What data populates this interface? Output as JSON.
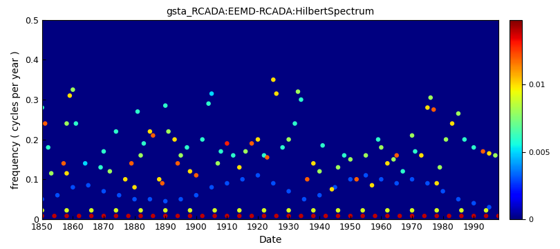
{
  "chart_data": {
    "type": "scatter",
    "title": "gsta_RCADA:EEMD-RCADA:HilbertSpectrum",
    "x_label": "Date",
    "y_label": "frequency ( cycles per year )",
    "xlim": [
      1850,
      1998
    ],
    "xticks": [
      1850,
      1860,
      1870,
      1880,
      1890,
      1900,
      1910,
      1920,
      1930,
      1940,
      1950,
      1960,
      1970,
      1980,
      1990
    ],
    "ylim": [
      0,
      0.5
    ],
    "yticks": [
      0,
      0.1,
      0.2,
      0.3,
      0.4,
      0.5
    ],
    "colorbar_range": [
      0,
      0.0148
    ],
    "colorbar_ticks": [
      0,
      0.005,
      0.01
    ],
    "points": [
      [
        1850,
        0.28,
        0.006
      ],
      [
        1851,
        0.24,
        0.012
      ],
      [
        1852,
        0.18,
        0.006
      ],
      [
        1853,
        0.115,
        0.008
      ],
      [
        1857,
        0.14,
        0.012
      ],
      [
        1858,
        0.24,
        0.008
      ],
      [
        1859,
        0.31,
        0.01
      ],
      [
        1860,
        0.325,
        0.008
      ],
      [
        1861,
        0.24,
        0.006
      ],
      [
        1858,
        0.115,
        0.01
      ],
      [
        1864,
        0.14,
        0.005
      ],
      [
        1869,
        0.13,
        0.006
      ],
      [
        1870,
        0.17,
        0.006
      ],
      [
        1872,
        0.12,
        0.008
      ],
      [
        1874,
        0.22,
        0.006
      ],
      [
        1877,
        0.1,
        0.01
      ],
      [
        1879,
        0.14,
        0.012
      ],
      [
        1880,
        0.08,
        0.01
      ],
      [
        1881,
        0.27,
        0.006
      ],
      [
        1882,
        0.16,
        0.008
      ],
      [
        1883,
        0.19,
        0.006
      ],
      [
        1885,
        0.22,
        0.01
      ],
      [
        1886,
        0.21,
        0.012
      ],
      [
        1888,
        0.1,
        0.01
      ],
      [
        1889,
        0.09,
        0.012
      ],
      [
        1890,
        0.285,
        0.006
      ],
      [
        1891,
        0.22,
        0.008
      ],
      [
        1893,
        0.2,
        0.01
      ],
      [
        1894,
        0.14,
        0.012
      ],
      [
        1895,
        0.16,
        0.008
      ],
      [
        1897,
        0.18,
        0.006
      ],
      [
        1898,
        0.12,
        0.01
      ],
      [
        1900,
        0.11,
        0.012
      ],
      [
        1902,
        0.2,
        0.006
      ],
      [
        1904,
        0.29,
        0.006
      ],
      [
        1905,
        0.315,
        0.005
      ],
      [
        1907,
        0.14,
        0.008
      ],
      [
        1908,
        0.17,
        0.006
      ],
      [
        1910,
        0.19,
        0.013
      ],
      [
        1912,
        0.16,
        0.006
      ],
      [
        1914,
        0.13,
        0.01
      ],
      [
        1916,
        0.17,
        0.008
      ],
      [
        1918,
        0.19,
        0.012
      ],
      [
        1920,
        0.2,
        0.01
      ],
      [
        1922,
        0.16,
        0.006
      ],
      [
        1923,
        0.155,
        0.012
      ],
      [
        1925,
        0.35,
        0.01
      ],
      [
        1926,
        0.315,
        0.01
      ],
      [
        1928,
        0.18,
        0.006
      ],
      [
        1930,
        0.2,
        0.008
      ],
      [
        1932,
        0.24,
        0.006
      ],
      [
        1933,
        0.32,
        0.008
      ],
      [
        1934,
        0.3,
        0.006
      ],
      [
        1936,
        0.1,
        0.012
      ],
      [
        1938,
        0.14,
        0.01
      ],
      [
        1940,
        0.12,
        0.008
      ],
      [
        1941,
        0.185,
        0.006
      ],
      [
        1944,
        0.075,
        0.01
      ],
      [
        1946,
        0.13,
        0.008
      ],
      [
        1948,
        0.16,
        0.006
      ],
      [
        1950,
        0.15,
        0.008
      ],
      [
        1952,
        0.1,
        0.012
      ],
      [
        1955,
        0.16,
        0.008
      ],
      [
        1957,
        0.085,
        0.01
      ],
      [
        1959,
        0.2,
        0.006
      ],
      [
        1960,
        0.18,
        0.008
      ],
      [
        1962,
        0.14,
        0.01
      ],
      [
        1964,
        0.15,
        0.008
      ],
      [
        1965,
        0.16,
        0.012
      ],
      [
        1967,
        0.12,
        0.006
      ],
      [
        1970,
        0.21,
        0.008
      ],
      [
        1971,
        0.17,
        0.006
      ],
      [
        1973,
        0.16,
        0.01
      ],
      [
        1975,
        0.28,
        0.01
      ],
      [
        1976,
        0.305,
        0.008
      ],
      [
        1977,
        0.275,
        0.012
      ],
      [
        1978,
        0.09,
        0.01
      ],
      [
        1979,
        0.13,
        0.008
      ],
      [
        1981,
        0.2,
        0.008
      ],
      [
        1983,
        0.24,
        0.01
      ],
      [
        1985,
        0.265,
        0.008
      ],
      [
        1987,
        0.2,
        0.006
      ],
      [
        1990,
        0.18,
        0.006
      ],
      [
        1993,
        0.17,
        0.012
      ],
      [
        1995,
        0.165,
        0.01
      ],
      [
        1997,
        0.16,
        0.008
      ],
      [
        1850,
        0.008,
        0.014
      ],
      [
        1854,
        0.008,
        0.014
      ],
      [
        1858,
        0.008,
        0.014
      ],
      [
        1862,
        0.008,
        0.014
      ],
      [
        1866,
        0.008,
        0.014
      ],
      [
        1870,
        0.008,
        0.014
      ],
      [
        1874,
        0.008,
        0.014
      ],
      [
        1878,
        0.008,
        0.014
      ],
      [
        1882,
        0.008,
        0.014
      ],
      [
        1886,
        0.008,
        0.014
      ],
      [
        1890,
        0.008,
        0.014
      ],
      [
        1894,
        0.008,
        0.014
      ],
      [
        1898,
        0.008,
        0.014
      ],
      [
        1902,
        0.008,
        0.014
      ],
      [
        1906,
        0.008,
        0.014
      ],
      [
        1910,
        0.008,
        0.014
      ],
      [
        1914,
        0.008,
        0.014
      ],
      [
        1918,
        0.008,
        0.014
      ],
      [
        1922,
        0.008,
        0.014
      ],
      [
        1926,
        0.008,
        0.014
      ],
      [
        1930,
        0.008,
        0.014
      ],
      [
        1934,
        0.008,
        0.014
      ],
      [
        1938,
        0.008,
        0.014
      ],
      [
        1942,
        0.008,
        0.014
      ],
      [
        1946,
        0.008,
        0.014
      ],
      [
        1950,
        0.008,
        0.014
      ],
      [
        1954,
        0.008,
        0.014
      ],
      [
        1958,
        0.008,
        0.014
      ],
      [
        1962,
        0.008,
        0.014
      ],
      [
        1966,
        0.008,
        0.014
      ],
      [
        1970,
        0.008,
        0.014
      ],
      [
        1974,
        0.008,
        0.014
      ],
      [
        1978,
        0.008,
        0.014
      ],
      [
        1982,
        0.008,
        0.014
      ],
      [
        1986,
        0.008,
        0.014
      ],
      [
        1990,
        0.008,
        0.014
      ],
      [
        1994,
        0.008,
        0.014
      ],
      [
        1998,
        0.008,
        0.014
      ],
      [
        1850,
        0.022,
        0.009
      ],
      [
        1858,
        0.022,
        0.009
      ],
      [
        1866,
        0.022,
        0.009
      ],
      [
        1874,
        0.022,
        0.009
      ],
      [
        1882,
        0.022,
        0.009
      ],
      [
        1890,
        0.022,
        0.009
      ],
      [
        1898,
        0.022,
        0.009
      ],
      [
        1906,
        0.022,
        0.009
      ],
      [
        1914,
        0.022,
        0.009
      ],
      [
        1922,
        0.022,
        0.009
      ],
      [
        1930,
        0.022,
        0.009
      ],
      [
        1938,
        0.022,
        0.009
      ],
      [
        1946,
        0.022,
        0.009
      ],
      [
        1954,
        0.022,
        0.009
      ],
      [
        1962,
        0.022,
        0.009
      ],
      [
        1970,
        0.022,
        0.009
      ],
      [
        1978,
        0.022,
        0.009
      ],
      [
        1986,
        0.022,
        0.009
      ],
      [
        1994,
        0.022,
        0.009
      ],
      [
        1850,
        0.05,
        0.003
      ],
      [
        1855,
        0.06,
        0.003
      ],
      [
        1860,
        0.08,
        0.003
      ],
      [
        1865,
        0.085,
        0.003
      ],
      [
        1870,
        0.07,
        0.003
      ],
      [
        1875,
        0.06,
        0.003
      ],
      [
        1880,
        0.05,
        0.003
      ],
      [
        1885,
        0.05,
        0.003
      ],
      [
        1890,
        0.045,
        0.003
      ],
      [
        1895,
        0.05,
        0.003
      ],
      [
        1900,
        0.06,
        0.003
      ],
      [
        1905,
        0.08,
        0.003
      ],
      [
        1910,
        0.09,
        0.003
      ],
      [
        1915,
        0.1,
        0.003
      ],
      [
        1920,
        0.11,
        0.003
      ],
      [
        1925,
        0.09,
        0.003
      ],
      [
        1930,
        0.07,
        0.003
      ],
      [
        1935,
        0.05,
        0.003
      ],
      [
        1940,
        0.06,
        0.003
      ],
      [
        1945,
        0.08,
        0.003
      ],
      [
        1950,
        0.1,
        0.003
      ],
      [
        1955,
        0.11,
        0.003
      ],
      [
        1960,
        0.1,
        0.003
      ],
      [
        1965,
        0.09,
        0.003
      ],
      [
        1970,
        0.1,
        0.003
      ],
      [
        1975,
        0.09,
        0.003
      ],
      [
        1980,
        0.07,
        0.003
      ],
      [
        1985,
        0.05,
        0.003
      ],
      [
        1990,
        0.04,
        0.003
      ],
      [
        1995,
        0.03,
        0.003
      ]
    ]
  }
}
